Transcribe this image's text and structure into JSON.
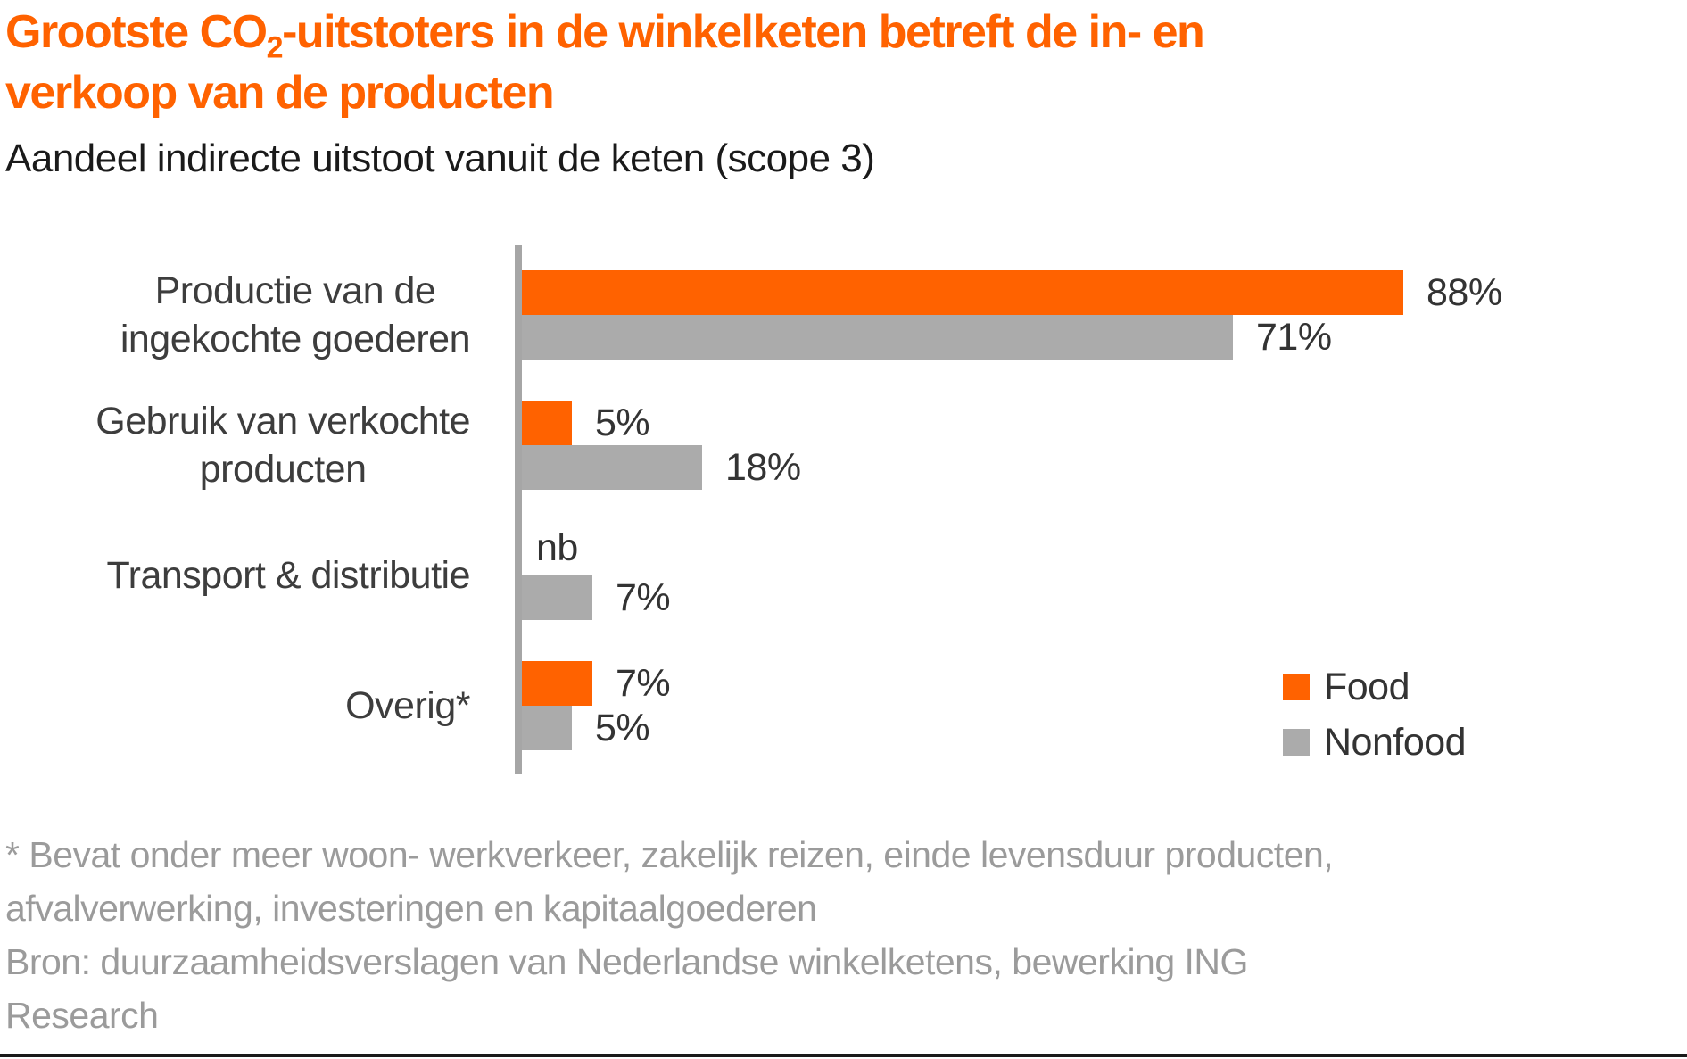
{
  "page": {
    "title": {
      "pre": "Grootste CO",
      "sub": "2",
      "post": "-uitstoters in de winkelketen betreft de in- en",
      "line2": "verkoop van de producten"
    },
    "subtitle": "Aandeel indirecte uitstoot vanuit de keten (scope 3)"
  },
  "colors": {
    "food": "#FF6200",
    "nonfood": "#ABABAB",
    "axis": "#A6A6A6",
    "title": "#FF6200",
    "text": "#333333",
    "footnote": "#9B9B9B",
    "bottom_rule": "#1A1A1A"
  },
  "chart_data": {
    "type": "bar",
    "orientation": "horizontal",
    "title": "Grootste CO2-uitstoters in de winkelketen betreft de in- en verkoop van de producten",
    "subtitle": "Aandeel indirecte uitstoot vanuit de keten (scope 3)",
    "categories": [
      [
        "Productie van de",
        "ingekochte goederen"
      ],
      [
        "Gebruik van verkochte",
        "producten"
      ],
      [
        "Transport & distributie"
      ],
      [
        "Overig*"
      ]
    ],
    "series": [
      {
        "name": "Food",
        "color_key": "food",
        "values": [
          88,
          5,
          null,
          7
        ],
        "labels": [
          "88%",
          "5%",
          "nb",
          "7%"
        ]
      },
      {
        "name": "Nonfood",
        "color_key": "nonfood",
        "values": [
          71,
          18,
          7,
          5
        ],
        "labels": [
          "71%",
          "18%",
          "7%",
          "5%"
        ]
      }
    ],
    "na_label": "nb",
    "value_suffix": "%",
    "grid": false,
    "axis_ticks_visible": false,
    "legend_position": "right-bottom"
  },
  "legend": {
    "items": [
      {
        "label": "Food",
        "color_key": "food"
      },
      {
        "label": "Nonfood",
        "color_key": "nonfood"
      }
    ]
  },
  "footnotes": {
    "lines": [
      "* Bevat onder meer woon- werkverkeer, zakelijk reizen, einde levensduur producten,",
      "afvalverwerking, investeringen en kapitaalgoederen",
      "Bron: duurzaamheidsverslagen van Nederlandse winkelketens, bewerking ING",
      "Research"
    ]
  }
}
